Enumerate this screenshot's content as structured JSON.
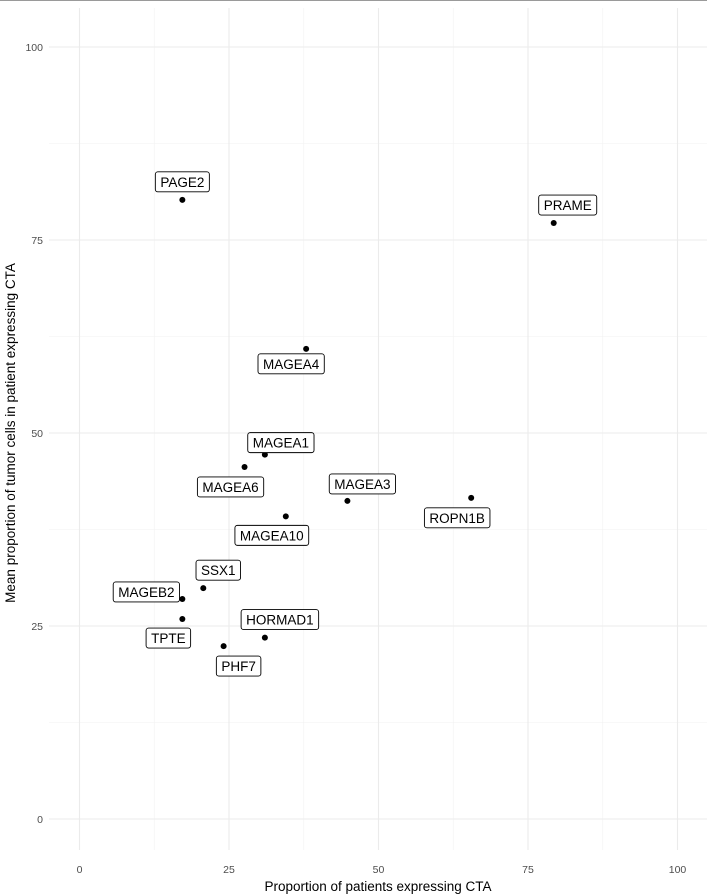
{
  "chart_data": {
    "type": "scatter",
    "title": "",
    "xlabel": "Proportion of patients expressing CTA",
    "ylabel": "Mean proportion of tumor cells in patient expressing CTA",
    "xlim": [
      0,
      100
    ],
    "ylim": [
      0,
      100
    ],
    "x_ticks": [
      0,
      25,
      50,
      75,
      100
    ],
    "y_ticks": [
      0,
      25,
      50,
      75,
      100
    ],
    "grid": true,
    "legend": "none",
    "point_color": "#000000",
    "points": [
      {
        "label": "PAGE2",
        "x": 17.2,
        "y": 80.2
      },
      {
        "label": "PRAME",
        "x": 79.3,
        "y": 77.2
      },
      {
        "label": "MAGEA4",
        "x": 37.9,
        "y": 60.9
      },
      {
        "label": "MAGEA1",
        "x": 31.0,
        "y": 47.2
      },
      {
        "label": "MAGEA6",
        "x": 27.6,
        "y": 45.6
      },
      {
        "label": "ROPN1B",
        "x": 65.5,
        "y": 41.6
      },
      {
        "label": "MAGEA3",
        "x": 44.8,
        "y": 41.2
      },
      {
        "label": "MAGEA10",
        "x": 34.5,
        "y": 39.2
      },
      {
        "label": "SSX1",
        "x": 20.7,
        "y": 29.9
      },
      {
        "label": "MAGEB2",
        "x": 17.2,
        "y": 28.5
      },
      {
        "label": "TPTE",
        "x": 17.2,
        "y": 25.9
      },
      {
        "label": "HORMAD1",
        "x": 31.0,
        "y": 23.5
      },
      {
        "label": "PHF7",
        "x": 24.1,
        "y": 22.4
      }
    ]
  }
}
